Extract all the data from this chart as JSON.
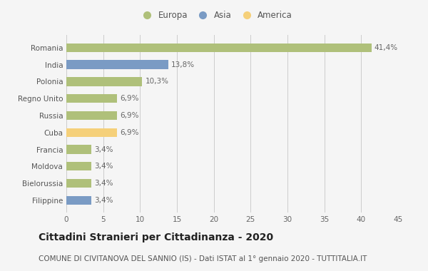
{
  "categories": [
    "Romania",
    "India",
    "Polonia",
    "Regno Unito",
    "Russia",
    "Cuba",
    "Francia",
    "Moldova",
    "Bielorussia",
    "Filippine"
  ],
  "values": [
    41.4,
    13.8,
    10.3,
    6.9,
    6.9,
    6.9,
    3.4,
    3.4,
    3.4,
    3.4
  ],
  "labels": [
    "41,4%",
    "13,8%",
    "10,3%",
    "6,9%",
    "6,9%",
    "6,9%",
    "3,4%",
    "3,4%",
    "3,4%",
    "3,4%"
  ],
  "colors": [
    "#afc07a",
    "#7a9bc4",
    "#afc07a",
    "#afc07a",
    "#afc07a",
    "#f5d07a",
    "#afc07a",
    "#afc07a",
    "#afc07a",
    "#7a9bc4"
  ],
  "legend_labels": [
    "Europa",
    "Asia",
    "America"
  ],
  "legend_colors": [
    "#afc07a",
    "#7a9bc4",
    "#f5d07a"
  ],
  "title": "Cittadini Stranieri per Cittadinanza - 2020",
  "subtitle": "COMUNE DI CIVITANOVA DEL SANNIO (IS) - Dati ISTAT al 1° gennaio 2020 - TUTTITALIA.IT",
  "xlim": [
    0,
    45
  ],
  "xticks": [
    0,
    5,
    10,
    15,
    20,
    25,
    30,
    35,
    40,
    45
  ],
  "background_color": "#f5f5f5",
  "bar_height": 0.52,
  "title_fontsize": 10,
  "subtitle_fontsize": 7.5,
  "label_fontsize": 7.5,
  "tick_fontsize": 7.5,
  "legend_fontsize": 8.5
}
